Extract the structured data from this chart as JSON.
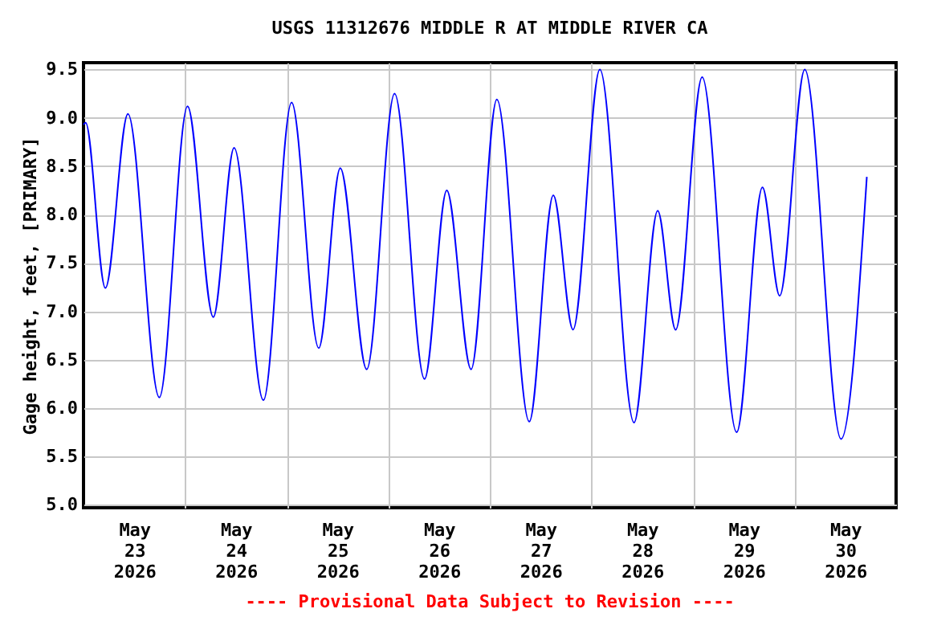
{
  "chart_data": {
    "type": "line",
    "title": "USGS 11312676 MIDDLE R AT MIDDLE RIVER CA",
    "ylabel": "Gage height, feet, [PRIMARY]",
    "annotations": [
      "---- Provisional Data Subject to Revision ----"
    ],
    "x": [
      "2026-05-23T00:00",
      "2026-05-23T00:30",
      "2026-05-23T05:10",
      "2026-05-23T10:30",
      "2026-05-23T17:55",
      "2026-05-24T00:35",
      "2026-05-24T06:40",
      "2026-05-24T11:35",
      "2026-05-24T18:30",
      "2026-05-25T01:10",
      "2026-05-25T07:35",
      "2026-05-25T12:40",
      "2026-05-25T18:55",
      "2026-05-26T01:30",
      "2026-05-26T08:35",
      "2026-05-26T13:50",
      "2026-05-26T19:35",
      "2026-05-27T01:40",
      "2026-05-27T09:20",
      "2026-05-27T15:00",
      "2026-05-27T19:40",
      "2026-05-28T02:00",
      "2026-05-28T10:05",
      "2026-05-28T15:40",
      "2026-05-28T19:55",
      "2026-05-29T02:10",
      "2026-05-29T10:20",
      "2026-05-29T16:25",
      "2026-05-29T20:30",
      "2026-05-30T02:25",
      "2026-05-30T11:00",
      "2026-05-30T17:05"
    ],
    "series": [
      {
        "color": "#0000ff",
        "values": [
          8.93,
          8.95,
          7.24,
          9.04,
          6.11,
          9.12,
          6.94,
          8.69,
          6.08,
          9.16,
          6.62,
          8.48,
          6.4,
          9.25,
          6.3,
          8.25,
          6.4,
          9.19,
          5.86,
          8.2,
          6.81,
          9.5,
          5.85,
          8.04,
          6.81,
          9.42,
          5.75,
          8.28,
          7.16,
          9.5,
          5.68,
          8.39
        ]
      }
    ],
    "xlim": [
      "2026-05-23T00:00",
      "2026-05-31T00:00"
    ],
    "xticks": [
      {
        "value": "2026-05-23T12:00",
        "label": "May 23 2026"
      },
      {
        "value": "2026-05-24T00:00",
        "label": null
      },
      {
        "value": "2026-05-24T12:00",
        "label": "May 24 2026"
      },
      {
        "value": "2026-05-25T00:00",
        "label": null
      },
      {
        "value": "2026-05-25T12:00",
        "label": "May 25 2026"
      },
      {
        "value": "2026-05-26T00:00",
        "label": null
      },
      {
        "value": "2026-05-26T12:00",
        "label": "May 26 2026"
      },
      {
        "value": "2026-05-27T00:00",
        "label": null
      },
      {
        "value": "2026-05-27T12:00",
        "label": "May 27 2026"
      },
      {
        "value": "2026-05-28T00:00",
        "label": null
      },
      {
        "value": "2026-05-28T12:00",
        "label": "May 28 2026"
      },
      {
        "value": "2026-05-29T00:00",
        "label": null
      },
      {
        "value": "2026-05-29T12:00",
        "label": "May 29 2026"
      },
      {
        "value": "2026-05-30T00:00",
        "label": null
      },
      {
        "value": "2026-05-30T12:00",
        "label": "May 30 2026"
      }
    ],
    "ylim": [
      4.97,
      9.57
    ],
    "yticks": [
      {
        "value": 5,
        "label": "5.0"
      },
      {
        "value": 5.5,
        "label": "5.5"
      },
      {
        "value": 6,
        "label": "6.0"
      },
      {
        "value": 6.5,
        "label": "6.5"
      },
      {
        "value": 7,
        "label": "7.0"
      },
      {
        "value": 7.5,
        "label": "7.5"
      },
      {
        "value": 8,
        "label": "8.0"
      },
      {
        "value": 8.5,
        "label": "8.5"
      },
      {
        "value": 9,
        "label": "9.0"
      },
      {
        "value": 9.5,
        "label": "9.5"
      }
    ],
    "grid": true,
    "line_style": "solid"
  }
}
